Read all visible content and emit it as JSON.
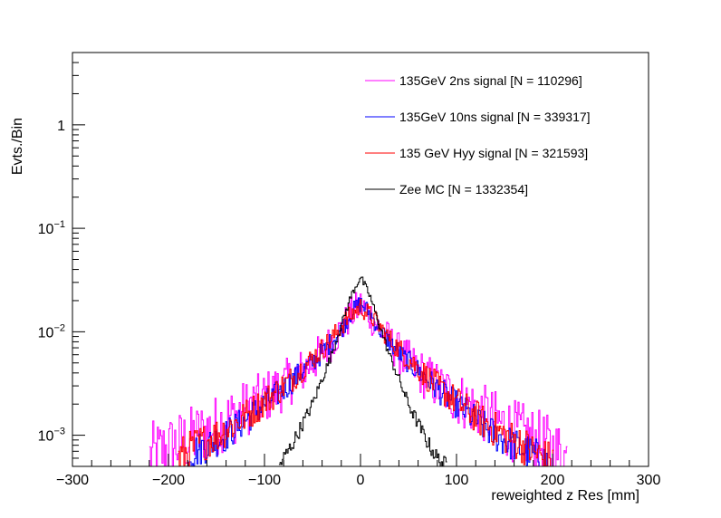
{
  "chart_data": {
    "type": "line",
    "style": "step-histogram",
    "title": "",
    "xlabel": "reweighted z Res [mm]",
    "ylabel": "Evts./Bin",
    "xlim": [
      -300,
      300
    ],
    "ylim": [
      0.0005,
      5.0
    ],
    "yscale": "log",
    "grid": false,
    "legend_position": "top-right",
    "x_ticks": [
      -300,
      -200,
      -100,
      0,
      100,
      200,
      300
    ],
    "y_tick_labels": [
      {
        "value": 0.001,
        "base": "10",
        "exp": "−3"
      },
      {
        "value": 0.01,
        "base": "10",
        "exp": "−2"
      },
      {
        "value": 0.1,
        "base": "10",
        "exp": "−1"
      },
      {
        "value": 1,
        "base": "1",
        "exp": ""
      }
    ],
    "series": [
      {
        "name": "135GeV 2ns signal [N = 110296]",
        "color": "#ff00ff",
        "x": [
          -220,
          -180,
          -160,
          -140,
          -120,
          -100,
          -80,
          -60,
          -40,
          -20,
          -10,
          0,
          10,
          20,
          40,
          60,
          80,
          100,
          120,
          140,
          160,
          180,
          200,
          215
        ],
        "values": [
          0.0006,
          0.0009,
          0.0011,
          0.0014,
          0.0018,
          0.0023,
          0.003,
          0.0042,
          0.0062,
          0.0105,
          0.0145,
          0.018,
          0.0145,
          0.0105,
          0.0062,
          0.0042,
          0.003,
          0.0023,
          0.0018,
          0.0014,
          0.0011,
          0.0009,
          0.0007,
          0.0006
        ],
        "noise": 0.35
      },
      {
        "name": "135GeV 10ns signal [N = 339317]",
        "color": "#0000ff",
        "x": [
          -180,
          -160,
          -140,
          -120,
          -100,
          -80,
          -60,
          -40,
          -20,
          -10,
          0,
          10,
          20,
          40,
          60,
          80,
          100,
          120,
          140,
          160,
          180,
          195
        ],
        "values": [
          0.00065,
          0.0008,
          0.001,
          0.0014,
          0.002,
          0.0028,
          0.0042,
          0.0062,
          0.0105,
          0.015,
          0.019,
          0.015,
          0.0105,
          0.0062,
          0.0042,
          0.0028,
          0.002,
          0.0014,
          0.001,
          0.0008,
          0.00065,
          0.00055
        ],
        "noise": 0.18
      },
      {
        "name": "135 GeV Hyy signal [N = 321593]",
        "color": "#ff0000",
        "x": [
          -190,
          -170,
          -150,
          -130,
          -110,
          -90,
          -70,
          -50,
          -30,
          -15,
          0,
          15,
          30,
          50,
          70,
          90,
          110,
          130,
          150,
          170,
          190,
          200
        ],
        "values": [
          0.0006,
          0.0008,
          0.001,
          0.0013,
          0.0018,
          0.0025,
          0.0036,
          0.0055,
          0.0085,
          0.013,
          0.0175,
          0.013,
          0.0085,
          0.0055,
          0.0036,
          0.0025,
          0.0018,
          0.0013,
          0.001,
          0.0008,
          0.0006,
          0.00055
        ],
        "noise": 0.2
      },
      {
        "name": "Zee MC [N = 1332354]",
        "color": "#000000",
        "x": [
          -85,
          -70,
          -60,
          -50,
          -40,
          -30,
          -20,
          -10,
          0,
          10,
          20,
          30,
          40,
          50,
          60,
          70,
          80,
          90
        ],
        "values": [
          0.0005,
          0.00085,
          0.0013,
          0.002,
          0.0035,
          0.006,
          0.0115,
          0.022,
          0.034,
          0.022,
          0.0115,
          0.006,
          0.0035,
          0.002,
          0.0013,
          0.00085,
          0.0006,
          0.0005
        ],
        "noise": 0.08
      }
    ]
  }
}
